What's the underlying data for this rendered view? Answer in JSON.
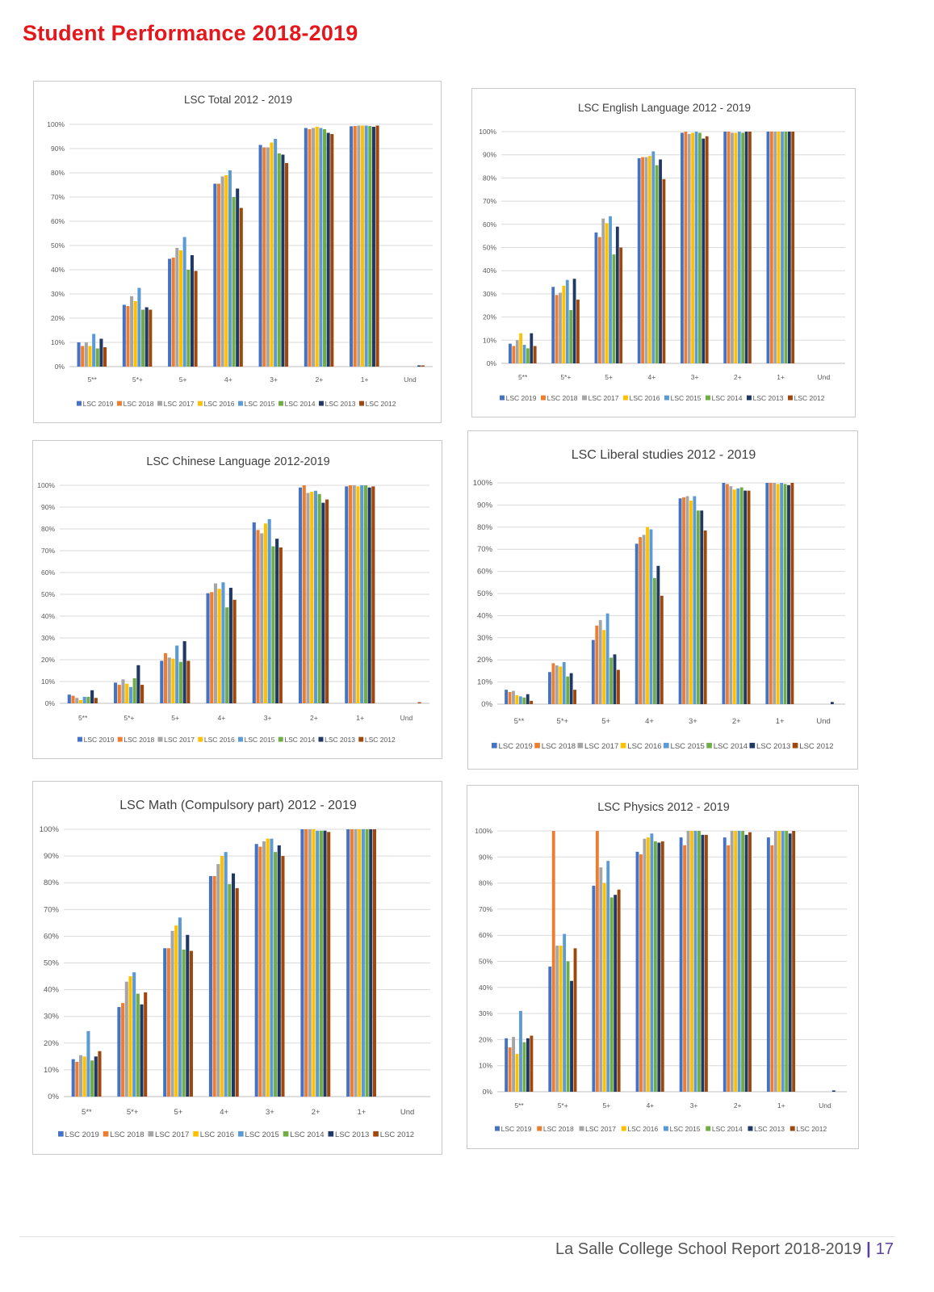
{
  "page": {
    "title": "Student Performance 2018-2019",
    "footer_text": "La Salle College School Report 2018-2019",
    "footer_separator": "|",
    "page_number": "17",
    "title_color": "#e3171c",
    "accent_color": "#5b3f9a"
  },
  "series_styles": [
    {
      "name": "LSC 2019",
      "color": "#4472c4"
    },
    {
      "name": "LSC 2018",
      "color": "#ed7d31"
    },
    {
      "name": "LSC 2017",
      "color": "#a5a5a5"
    },
    {
      "name": "LSC 2016",
      "color": "#ffc000"
    },
    {
      "name": "LSC 2015",
      "color": "#5b9bd5"
    },
    {
      "name": "LSC 2014",
      "color": "#70ad47"
    },
    {
      "name": "LSC 2013",
      "color": "#203864"
    },
    {
      "name": "LSC 2012",
      "color": "#9e480e"
    }
  ],
  "chart_data": [
    {
      "type": "bar",
      "title": "LSC Total 2012 - 2019",
      "categories": [
        "5**",
        "5*+",
        "5+",
        "4+",
        "3+",
        "2+",
        "1+",
        "Und"
      ],
      "yticks": [
        "0%",
        "10%",
        "20%",
        "30%",
        "40%",
        "50%",
        "60%",
        "70%",
        "80%",
        "90%",
        "100%"
      ],
      "ylim": [
        0,
        100
      ],
      "grid": true,
      "legend": "bottom",
      "series": [
        {
          "name": "LSC 2019",
          "values": [
            10,
            25.5,
            44.5,
            75.5,
            91.5,
            98.5,
            99.2,
            0
          ]
        },
        {
          "name": "LSC 2018",
          "values": [
            8.5,
            25,
            45,
            75.5,
            90.5,
            98,
            99.3,
            0
          ]
        },
        {
          "name": "LSC 2017",
          "values": [
            10,
            29,
            49,
            78.5,
            90.5,
            98.5,
            99.5,
            0
          ]
        },
        {
          "name": "LSC 2016",
          "values": [
            8.5,
            27,
            48,
            79,
            92.5,
            99,
            99.5,
            0
          ]
        },
        {
          "name": "LSC 2015",
          "values": [
            13.5,
            32.5,
            53.5,
            81,
            94,
            98.5,
            99.5,
            0
          ]
        },
        {
          "name": "LSC 2014",
          "values": [
            7.5,
            23.5,
            40,
            70,
            88,
            98,
            99.3,
            0
          ]
        },
        {
          "name": "LSC 2013",
          "values": [
            11.5,
            24.5,
            46,
            73.5,
            87.5,
            96.5,
            99,
            0.5
          ]
        },
        {
          "name": "LSC 2012",
          "values": [
            8,
            23.5,
            39.5,
            65.5,
            84,
            96,
            99.5,
            0.5
          ]
        }
      ]
    },
    {
      "type": "bar",
      "title": "LSC English Language 2012 - 2019",
      "categories": [
        "5**",
        "5*+",
        "5+",
        "4+",
        "3+",
        "2+",
        "1+",
        "Und"
      ],
      "yticks": [
        "0%",
        "10%",
        "20%",
        "30%",
        "40%",
        "50%",
        "60%",
        "70%",
        "80%",
        "90%",
        "100%"
      ],
      "ylim": [
        0,
        100
      ],
      "grid": true,
      "legend": "bottom",
      "series": [
        {
          "name": "LSC 2019",
          "values": [
            8.5,
            33,
            56.5,
            88.5,
            99.5,
            100,
            100,
            0
          ]
        },
        {
          "name": "LSC 2018",
          "values": [
            7.5,
            29.5,
            54.5,
            89,
            100,
            100,
            100,
            0
          ]
        },
        {
          "name": "LSC 2017",
          "values": [
            10,
            30.5,
            62.5,
            89,
            99,
            99.5,
            100,
            0
          ]
        },
        {
          "name": "LSC 2016",
          "values": [
            13,
            33.5,
            60.5,
            89.5,
            99.5,
            99.5,
            100,
            0
          ]
        },
        {
          "name": "LSC 2015",
          "values": [
            8,
            36,
            63.5,
            91.5,
            100,
            100,
            100,
            0
          ]
        },
        {
          "name": "LSC 2014",
          "values": [
            6.5,
            23,
            47,
            85.5,
            99.5,
            99.5,
            100,
            0
          ]
        },
        {
          "name": "LSC 2013",
          "values": [
            13,
            36.5,
            59,
            88,
            97,
            100,
            100,
            0
          ]
        },
        {
          "name": "LSC 2012",
          "values": [
            7.5,
            27.5,
            50,
            79.5,
            98,
            100,
            100,
            0
          ]
        }
      ]
    },
    {
      "type": "bar",
      "title": "LSC Chinese Language 2012-2019",
      "categories": [
        "5**",
        "5*+",
        "5+",
        "4+",
        "3+",
        "2+",
        "1+",
        "Und"
      ],
      "yticks": [
        "0%",
        "10%",
        "20%",
        "30%",
        "40%",
        "50%",
        "60%",
        "70%",
        "80%",
        "90%",
        "100%"
      ],
      "ylim": [
        0,
        100
      ],
      "grid": true,
      "legend": "bottom",
      "series": [
        {
          "name": "LSC 2019",
          "values": [
            4,
            9.5,
            19.5,
            50.5,
            83,
            99,
            99.5,
            0
          ]
        },
        {
          "name": "LSC 2018",
          "values": [
            3.5,
            8.5,
            23,
            51,
            79.5,
            100,
            100,
            0
          ]
        },
        {
          "name": "LSC 2017",
          "values": [
            2.5,
            11,
            21,
            55,
            78,
            96.5,
            100,
            0
          ]
        },
        {
          "name": "LSC 2016",
          "values": [
            1.5,
            9,
            20.5,
            52.5,
            82.5,
            97,
            99.5,
            0
          ]
        },
        {
          "name": "LSC 2015",
          "values": [
            3,
            7.5,
            26.5,
            55.5,
            84.5,
            97.5,
            100,
            0
          ]
        },
        {
          "name": "LSC 2014",
          "values": [
            3,
            11.5,
            19,
            44,
            72,
            96,
            100,
            0
          ]
        },
        {
          "name": "LSC 2013",
          "values": [
            6,
            17.5,
            28.5,
            53,
            75.5,
            92,
            99,
            0
          ]
        },
        {
          "name": "LSC 2012",
          "values": [
            2.5,
            8.5,
            19.5,
            47.5,
            71.5,
            93.5,
            99.5,
            0.5
          ]
        }
      ]
    },
    {
      "type": "bar",
      "title": "LSC Liberal studies 2012 - 2019",
      "categories": [
        "5**",
        "5*+",
        "5+",
        "4+",
        "3+",
        "2+",
        "1+",
        "Und"
      ],
      "yticks": [
        "0%",
        "10%",
        "20%",
        "30%",
        "40%",
        "50%",
        "60%",
        "70%",
        "80%",
        "90%",
        "100%"
      ],
      "ylim": [
        0,
        100
      ],
      "grid": true,
      "legend": "bottom",
      "series": [
        {
          "name": "LSC 2019",
          "values": [
            6.5,
            14.5,
            29,
            72.5,
            93,
            100,
            100,
            0
          ]
        },
        {
          "name": "LSC 2018",
          "values": [
            5.5,
            18.5,
            35.5,
            75.5,
            93.5,
            99.5,
            100,
            0
          ]
        },
        {
          "name": "LSC 2017",
          "values": [
            6,
            17.5,
            38,
            76.5,
            94,
            98.5,
            100,
            0
          ]
        },
        {
          "name": "LSC 2016",
          "values": [
            4,
            17,
            33.5,
            80,
            92,
            97,
            99.5,
            0
          ]
        },
        {
          "name": "LSC 2015",
          "values": [
            3.5,
            19,
            41,
            79,
            94,
            97.5,
            100,
            0
          ]
        },
        {
          "name": "LSC 2014",
          "values": [
            3,
            12.5,
            21,
            57,
            87.5,
            98,
            99.5,
            0
          ]
        },
        {
          "name": "LSC 2013",
          "values": [
            4.5,
            14,
            22.5,
            62.5,
            87.5,
            96.5,
            99,
            1
          ]
        },
        {
          "name": "LSC 2012",
          "values": [
            1.5,
            6.5,
            15.5,
            49,
            78.5,
            96.5,
            100,
            0
          ]
        }
      ]
    },
    {
      "type": "bar",
      "title": "LSC Math (Compulsory part) 2012 - 2019",
      "categories": [
        "5**",
        "5*+",
        "5+",
        "4+",
        "3+",
        "2+",
        "1+",
        "Und"
      ],
      "yticks": [
        "0%",
        "10%",
        "20%",
        "30%",
        "40%",
        "50%",
        "60%",
        "70%",
        "80%",
        "90%",
        "100%"
      ],
      "ylim": [
        0,
        100
      ],
      "grid": true,
      "legend": "bottom",
      "series": [
        {
          "name": "LSC 2019",
          "values": [
            14,
            33.5,
            55.5,
            82.5,
            94.5,
            100,
            100,
            0
          ]
        },
        {
          "name": "LSC 2018",
          "values": [
            13,
            35,
            55.5,
            82.5,
            93.5,
            100,
            100,
            0
          ]
        },
        {
          "name": "LSC 2017",
          "values": [
            15.5,
            43,
            62,
            87,
            95.5,
            100,
            100,
            0
          ]
        },
        {
          "name": "LSC 2016",
          "values": [
            15,
            45,
            64,
            90,
            96.5,
            100,
            100,
            0
          ]
        },
        {
          "name": "LSC 2015",
          "values": [
            24.5,
            46.5,
            67,
            91.5,
            96.5,
            99.5,
            100,
            0
          ]
        },
        {
          "name": "LSC 2014",
          "values": [
            13.5,
            38.5,
            55,
            79.5,
            91.5,
            99.5,
            100,
            0
          ]
        },
        {
          "name": "LSC 2013",
          "values": [
            15,
            34.5,
            60.5,
            83.5,
            94,
            99.5,
            100,
            0
          ]
        },
        {
          "name": "LSC 2012",
          "values": [
            17,
            39,
            54.5,
            78,
            90,
            99,
            100,
            0
          ]
        }
      ]
    },
    {
      "type": "bar",
      "title": "LSC Physics 2012 - 2019",
      "categories": [
        "5**",
        "5*+",
        "5+",
        "4+",
        "3+",
        "2+",
        "1+",
        "Und"
      ],
      "yticks": [
        "0%",
        "10%",
        "20%",
        "30%",
        "40%",
        "50%",
        "60%",
        "70%",
        "80%",
        "90%",
        "100%"
      ],
      "ylim": [
        0,
        100
      ],
      "grid": true,
      "legend": "bottom",
      "series": [
        {
          "name": "LSC 2019",
          "values": [
            20.5,
            48,
            79,
            92,
            97.5,
            97.5,
            97.5,
            0
          ]
        },
        {
          "name": "LSC 2018",
          "values": [
            17,
            100,
            100,
            91,
            94.5,
            94.5,
            94.5,
            0
          ]
        },
        {
          "name": "LSC 2017",
          "values": [
            21,
            56,
            86,
            97,
            100,
            100,
            100,
            0
          ]
        },
        {
          "name": "LSC 2016",
          "values": [
            14.5,
            56,
            80,
            97.5,
            100,
            100,
            100,
            0
          ]
        },
        {
          "name": "LSC 2015",
          "values": [
            31,
            60.5,
            88.5,
            99,
            100,
            100,
            100,
            0
          ]
        },
        {
          "name": "LSC 2014",
          "values": [
            19,
            50,
            74.5,
            96,
            100,
            100,
            100,
            0
          ]
        },
        {
          "name": "LSC 2013",
          "values": [
            20.5,
            42.5,
            75.5,
            95.5,
            98.5,
            98.5,
            99,
            0.5
          ]
        },
        {
          "name": "LSC 2012",
          "values": [
            21.5,
            55,
            77.5,
            96,
            98.5,
            99.5,
            100,
            0
          ]
        }
      ]
    }
  ]
}
